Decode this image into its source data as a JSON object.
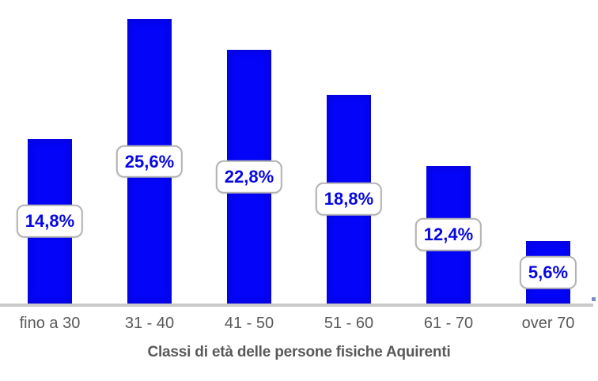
{
  "chart_data": {
    "type": "bar",
    "categories": [
      "fino a 30",
      "31 - 40",
      "41 - 50",
      "51 - 60",
      "61 - 70",
      "over 70"
    ],
    "values": [
      14.8,
      25.6,
      22.8,
      18.8,
      12.4,
      5.6
    ],
    "value_labels": [
      "14,8%",
      "25,6%",
      "22,8%",
      "18,8%",
      "12,4%",
      "5,6%"
    ],
    "xlabel": "Classi di età delle persone fisiche Aquirenti",
    "ylabel": "",
    "ylim": [
      0,
      27.3
    ],
    "grid": false,
    "legend": "none",
    "value_label_style": "rounded-callout-box-centered-on-bar",
    "colors": {
      "background": "#ffffff",
      "bar": "#0404f8",
      "value_label_text": "#0707e0",
      "value_label_bg": "#ffffff",
      "value_label_border": "#b3b3b3",
      "axis_line": "#c9c9c9",
      "axis_end_marker": "#7b8dc9",
      "category_text": "#595959",
      "axis_title_text": "#595959"
    }
  }
}
